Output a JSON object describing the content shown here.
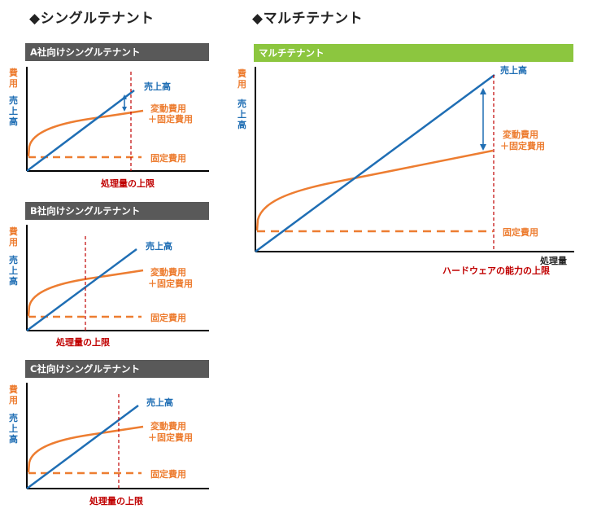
{
  "single": {
    "title": "◆シングルテナント",
    "panels": [
      {
        "header": "A社向けシングルテナント"
      },
      {
        "header": "B社向けシングルテナント"
      },
      {
        "header": "C社向けシングルテナント"
      }
    ]
  },
  "multi": {
    "title": "◆マルチテナント",
    "header": "マルチテナント",
    "xlabel": "処理量",
    "limit_label": "ハードウェアの能力の上限"
  },
  "labels": {
    "cost_axis_1": "費",
    "cost_axis_2": "用",
    "sales_axis_1": "売",
    "sales_axis_2": "上",
    "sales_axis_3": "高",
    "sales": "売上高",
    "variable_cost": "変動費用",
    "plus_fixed": "＋固定費用",
    "fixed_cost": "固定費用",
    "capacity_limit": "処理量の上限"
  },
  "colors": {
    "sales_line": "#1f6eb4",
    "cost_line": "#ed7d31",
    "limit_line": "#c00000",
    "dark_header": "#595959",
    "green_header": "#8cc63f",
    "axis": "#000000"
  }
}
